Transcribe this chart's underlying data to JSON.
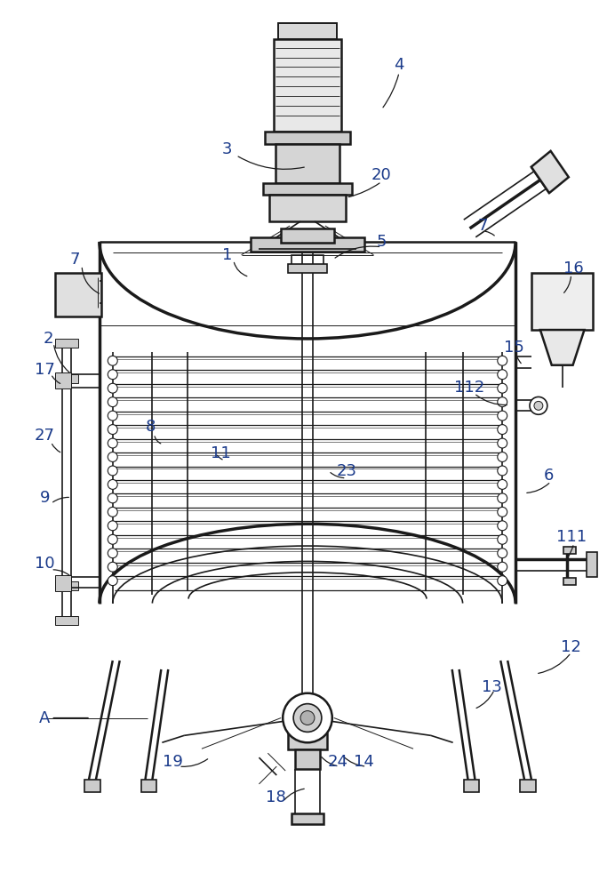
{
  "bg_color": "#ffffff",
  "line_color": "#1a1a1a",
  "label_color": "#1a3a8a",
  "fig_width": 6.92,
  "fig_height": 10.0
}
